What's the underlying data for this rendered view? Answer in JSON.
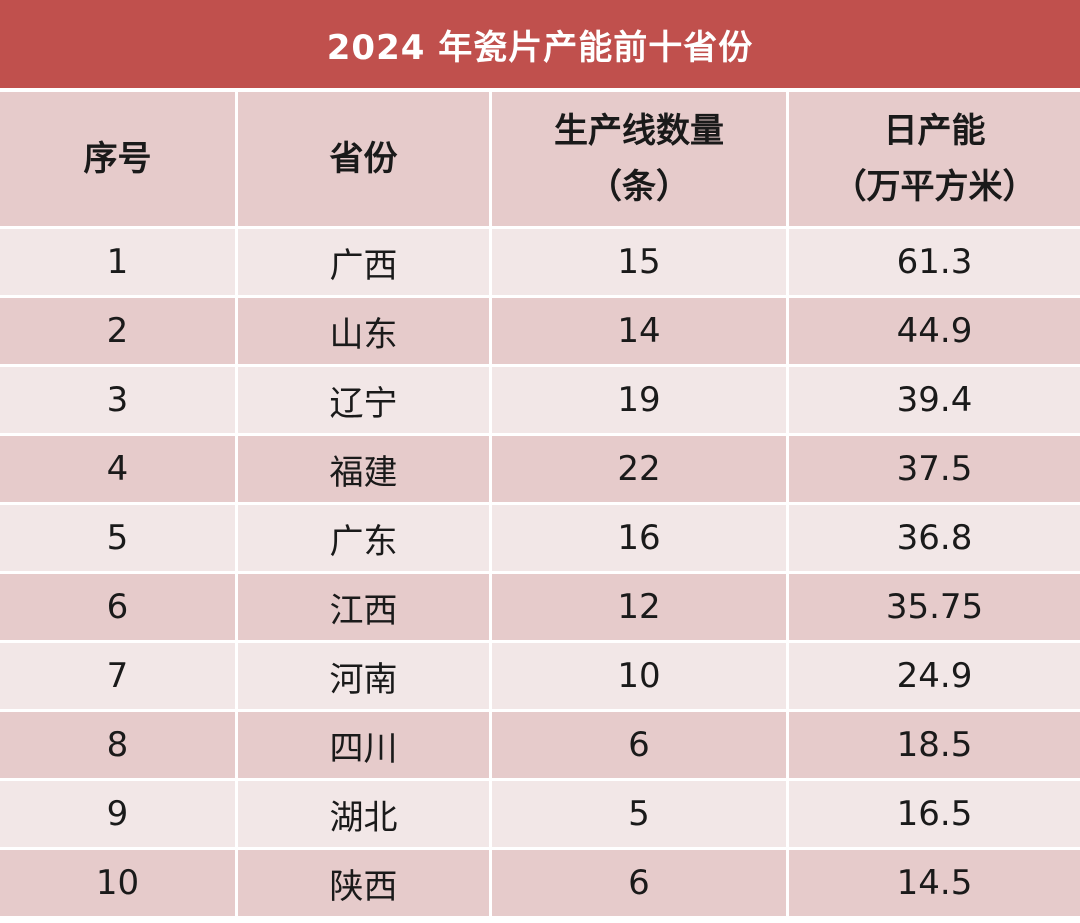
{
  "title": "2024 年瓷片产能前十省份",
  "headers": {
    "index": "序号",
    "province": "省份",
    "lines": {
      "line1": "生产线数量",
      "line2": "（条）"
    },
    "capacity": {
      "line1": "日产能",
      "line2": "（万平方米）"
    }
  },
  "rows": [
    {
      "index": "1",
      "province": "广西",
      "lines": "15",
      "capacity": "61.3"
    },
    {
      "index": "2",
      "province": "山东",
      "lines": "14",
      "capacity": "44.9"
    },
    {
      "index": "3",
      "province": "辽宁",
      "lines": "19",
      "capacity": "39.4"
    },
    {
      "index": "4",
      "province": "福建",
      "lines": "22",
      "capacity": "37.5"
    },
    {
      "index": "5",
      "province": "广东",
      "lines": "16",
      "capacity": "36.8"
    },
    {
      "index": "6",
      "province": "江西",
      "lines": "12",
      "capacity": "35.75"
    },
    {
      "index": "7",
      "province": "河南",
      "lines": "10",
      "capacity": "24.9"
    },
    {
      "index": "8",
      "province": "四川",
      "lines": "6",
      "capacity": "18.5"
    },
    {
      "index": "9",
      "province": "湖北",
      "lines": "5",
      "capacity": "16.5"
    },
    {
      "index": "10",
      "province": "陕西",
      "lines": "6",
      "capacity": "14.5"
    }
  ],
  "colors": {
    "title_bg": "#c0504d",
    "header_bg": "#e6cbcb",
    "row_light": "#f2e7e7",
    "row_dark": "#e6cbcb"
  }
}
